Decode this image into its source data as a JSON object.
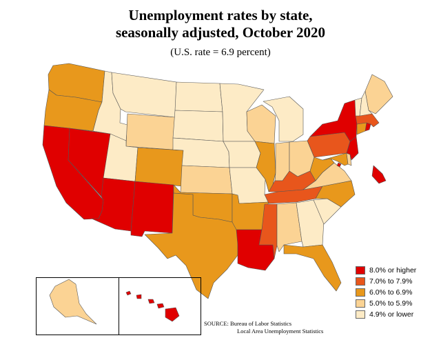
{
  "title_line1": "Unemployment rates by state,",
  "title_line2": "seasonally adjusted, October 2020",
  "subtitle": "(U.S. rate = 6.9 percent)",
  "legend": [
    {
      "label": "8.0% or higher",
      "color": "#e00000"
    },
    {
      "label": "7.0% to 7.9%",
      "color": "#e8561c"
    },
    {
      "label": "6.0% to 6.9%",
      "color": "#e8981c"
    },
    {
      "label": "5.0% to 5.9%",
      "color": "#fbd394"
    },
    {
      "label": "4.9% or lower",
      "color": "#fdebc6"
    }
  ],
  "source_line1": "SOURCE:   Bureau of Labor Statistics",
  "source_line2": "Local Area Unemployment Statistics",
  "states": {
    "WA": "6.0% to 6.9%",
    "OR": "6.0% to 6.9%",
    "CA": "8.0% or higher",
    "NV": "8.0% or higher",
    "ID": "4.9% or lower",
    "MT": "4.9% or lower",
    "WY": "5.0% to 5.9%",
    "UT": "4.9% or lower",
    "AZ": "8.0% or higher",
    "NM": "8.0% or higher",
    "CO": "6.0% to 6.9%",
    "ND": "4.9% or lower",
    "SD": "4.9% or lower",
    "NE": "4.9% or lower",
    "KS": "5.0% to 5.9%",
    "OK": "6.0% to 6.9%",
    "TX": "6.0% to 6.9%",
    "MN": "4.9% or lower",
    "IA": "4.9% or lower",
    "MO": "4.9% or lower",
    "AR": "6.0% to 6.9%",
    "LA": "8.0% or higher",
    "WI": "5.0% to 5.9%",
    "IL": "6.0% to 6.9%",
    "MI": "4.9% or lower",
    "IN": "5.0% to 5.9%",
    "OH": "5.0% to 5.9%",
    "KY": "7.0% to 7.9%",
    "TN": "7.0% to 7.9%",
    "MS": "7.0% to 7.9%",
    "AL": "5.0% to 5.9%",
    "GA": "4.9% or lower",
    "FL": "6.0% to 6.9%",
    "SC": "4.9% or lower",
    "NC": "6.0% to 6.9%",
    "VA": "5.0% to 5.9%",
    "WV": "6.0% to 6.9%",
    "PA": "7.0% to 7.9%",
    "NY": "8.0% or higher",
    "VT": "4.9% or lower",
    "NH": "4.9% or lower",
    "ME": "5.0% to 5.9%",
    "MA": "7.0% to 7.9%",
    "RI": "8.0% or higher",
    "CT": "6.0% to 6.9%",
    "NJ": "8.0% or higher",
    "DE": "5.0% to 5.9%",
    "MD": "6.0% to 6.9%",
    "DC": "8.0% or higher",
    "AK": "5.0% to 5.9%",
    "HI": "8.0% or higher"
  }
}
